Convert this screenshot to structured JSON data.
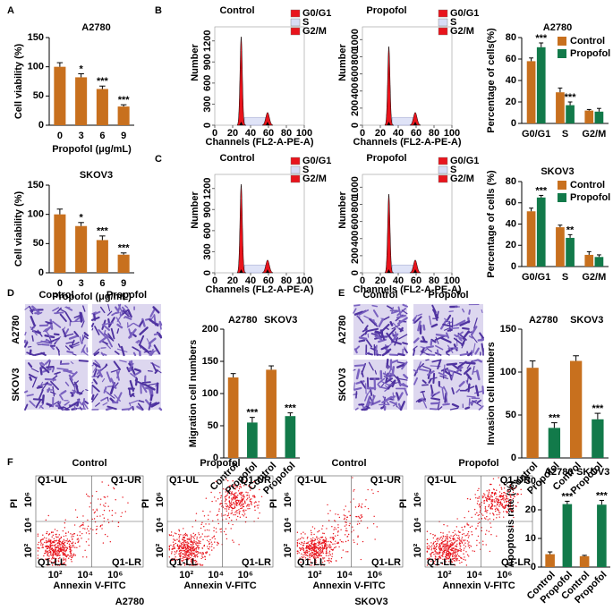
{
  "panel_letters": [
    "A",
    "B",
    "C",
    "D",
    "E",
    "F"
  ],
  "chart_data": [
    {
      "type": "bar",
      "title": "A2780",
      "ylabel": "Cell viability (%)",
      "xlabel": "Propofol (μg/mL)",
      "categories": [
        "0",
        "3",
        "6",
        "9"
      ],
      "values": [
        100,
        82,
        62,
        32
      ],
      "errors": [
        7,
        6,
        5,
        3
      ],
      "annotations": [
        null,
        "*",
        "***",
        "***"
      ],
      "color": "#c8701e",
      "ylim": [
        0,
        150
      ],
      "yticks": [
        0,
        50,
        100,
        150
      ]
    },
    {
      "type": "bar",
      "title": "SKOV3",
      "ylabel": "Cell viability (%)",
      "xlabel": "Propofol (μg/mL)",
      "categories": [
        "0",
        "3",
        "6",
        "9"
      ],
      "values": [
        100,
        80,
        56,
        31
      ],
      "errors": [
        9,
        6,
        7,
        3
      ],
      "annotations": [
        null,
        "*",
        "***",
        "***"
      ],
      "color": "#c8701e",
      "ylim": [
        0,
        150
      ],
      "yticks": [
        0,
        50,
        100,
        150
      ]
    },
    {
      "type": "grouped_bar",
      "title": "A2780",
      "ylabel": "Percentage of cells(%)",
      "categories": [
        "G0/G1",
        "S",
        "G2/M"
      ],
      "series": [
        {
          "name": "Control",
          "color": "#c8701e",
          "values": [
            58,
            29,
            12
          ],
          "errors": [
            3,
            4,
            1
          ]
        },
        {
          "name": "Propofol",
          "color": "#127a4a",
          "values": [
            71,
            17,
            11
          ],
          "errors": [
            4,
            3,
            3
          ],
          "annotations": [
            "***",
            "***",
            null
          ]
        }
      ],
      "ylim": [
        0,
        80
      ],
      "yticks": [
        0,
        20,
        40,
        60,
        80
      ],
      "legend": "upper right"
    },
    {
      "type": "grouped_bar",
      "title": "SKOV3",
      "ylabel": "Percentage of cells (%)",
      "categories": [
        "G0/G1",
        "S",
        "G2/M"
      ],
      "series": [
        {
          "name": "Control",
          "color": "#c8701e",
          "values": [
            52,
            37,
            11
          ],
          "errors": [
            3,
            2,
            3
          ]
        },
        {
          "name": "Propofol",
          "color": "#127a4a",
          "values": [
            65,
            27,
            9
          ],
          "errors": [
            2,
            3,
            2
          ],
          "annotations": [
            "***",
            "**",
            null
          ]
        }
      ],
      "ylim": [
        0,
        80
      ],
      "yticks": [
        0,
        20,
        40,
        60,
        80
      ],
      "legend": "upper right"
    },
    {
      "type": "bar",
      "ylabel": "Migration cell numbers",
      "groups": [
        "A2780",
        "SKOV3"
      ],
      "categories": [
        "Control",
        "Propofol",
        "Control",
        "Propofol"
      ],
      "values": [
        125,
        55,
        137,
        65
      ],
      "errors": [
        6,
        8,
        6,
        5
      ],
      "colors": [
        "#c8701e",
        "#127a4a",
        "#c8701e",
        "#127a4a"
      ],
      "annotations": [
        null,
        "***",
        null,
        "***"
      ],
      "ylim": [
        0,
        200
      ],
      "yticks": [
        0,
        50,
        100,
        150,
        200
      ]
    },
    {
      "type": "bar",
      "ylabel": "Invasion cell numbers",
      "groups": [
        "A2780",
        "SKOV3"
      ],
      "categories": [
        "Control",
        "Propofol",
        "Control",
        "Propofol"
      ],
      "values": [
        105,
        35,
        113,
        45
      ],
      "errors": [
        8,
        6,
        6,
        7
      ],
      "colors": [
        "#c8701e",
        "#127a4a",
        "#c8701e",
        "#127a4a"
      ],
      "annotations": [
        null,
        "***",
        null,
        "***"
      ],
      "ylim": [
        0,
        150
      ],
      "yticks": [
        0,
        50,
        100,
        150
      ]
    },
    {
      "type": "bar",
      "ylabel": "Apoptosis rate (%)",
      "groups": [
        "A2780",
        "SKOV3"
      ],
      "categories": [
        "Control",
        "Propofol",
        "Control",
        "Propofol"
      ],
      "values": [
        4.5,
        22,
        3.8,
        21.8
      ],
      "errors": [
        0.8,
        1,
        0.3,
        1.5
      ],
      "colors": [
        "#c8701e",
        "#127a4a",
        "#c8701e",
        "#127a4a"
      ],
      "annotations": [
        null,
        "***",
        null,
        "***"
      ],
      "ylim": [
        0,
        30
      ],
      "yticks": [
        0,
        10,
        20,
        30
      ]
    }
  ],
  "cell_cycle_histograms": [
    {
      "title": "Control",
      "xlim": [
        0,
        100
      ],
      "ylim": [
        0,
        1400
      ],
      "yticks": [
        0,
        300,
        600,
        900,
        1200
      ]
    },
    {
      "title": "Propofol",
      "xlim": [
        0,
        100
      ],
      "ylim": [
        0,
        1150
      ],
      "yticks": [
        0,
        200,
        400,
        600,
        800,
        1000
      ]
    },
    {
      "title": "Control",
      "xlim": [
        0,
        100
      ],
      "ylim": [
        0,
        1400
      ],
      "yticks": [
        0,
        300,
        600,
        900,
        1200
      ]
    },
    {
      "title": "Propofol",
      "xlim": [
        0,
        100
      ],
      "ylim": [
        0,
        1150
      ],
      "yticks": [
        0,
        200,
        400,
        600,
        800,
        1000
      ]
    }
  ],
  "histogram_legend": [
    "G0/G1",
    "S",
    "G2/M"
  ],
  "histogram_xlabel": "Channels (FL2-A-PE-A)",
  "histogram_ylabel": "Number",
  "histogram_xticks": [
    0,
    20,
    40,
    60,
    80,
    100
  ],
  "migration_images": {
    "columns": [
      "Control",
      "Propofol"
    ],
    "rows": [
      "A2780",
      "SKOV3"
    ]
  },
  "invasion_images": {
    "columns": [
      "Control",
      "Propofol"
    ],
    "rows": [
      "A2780",
      "SKOV3"
    ]
  },
  "flow_plots": [
    {
      "title": "Control"
    },
    {
      "title": "Propofol"
    },
    {
      "title": "Control"
    },
    {
      "title": "Propofol"
    }
  ],
  "flow_quadrants": [
    "Q1-UL",
    "Q1-UR",
    "Q1-LL",
    "Q1-LR"
  ],
  "flow_xlabel": "Annexin V-FITC",
  "flow_ylabel": "PI",
  "flow_ticks": [
    "10²",
    "10⁴",
    "10⁶"
  ],
  "flow_groups": [
    "A2780",
    "SKOV3"
  ]
}
